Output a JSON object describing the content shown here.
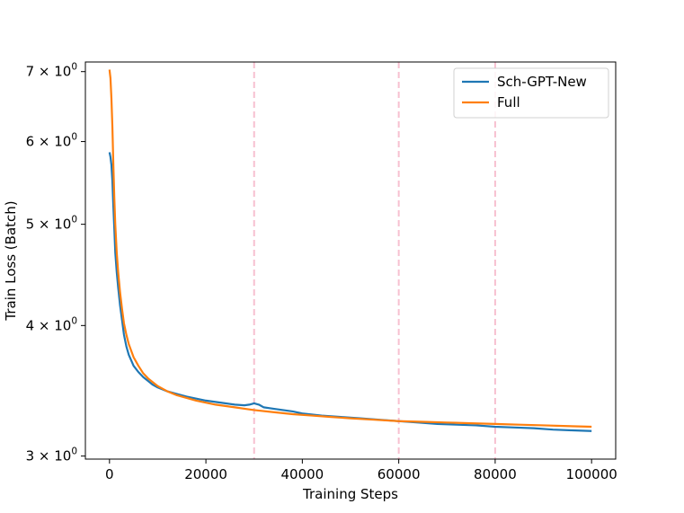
{
  "chart_data": {
    "type": "line",
    "title": "",
    "xlabel": "Training Steps",
    "ylabel": "Train Loss (Batch)",
    "xlim": [
      -5000,
      105000
    ],
    "ylim": [
      2.98,
      7.15
    ],
    "yscale": "log",
    "grid": false,
    "legend_position": "top-right",
    "x_ticks": [
      {
        "value": 0,
        "label": "0"
      },
      {
        "value": 20000,
        "label": "20000"
      },
      {
        "value": 40000,
        "label": "40000"
      },
      {
        "value": 60000,
        "label": "60000"
      },
      {
        "value": 80000,
        "label": "80000"
      },
      {
        "value": 100000,
        "label": "100000"
      }
    ],
    "y_ticks": [
      {
        "value": 3,
        "mantissa": "3",
        "times": "×",
        "base": "10",
        "exp": "0"
      },
      {
        "value": 4,
        "mantissa": "4",
        "times": "×",
        "base": "10",
        "exp": "0"
      },
      {
        "value": 5,
        "mantissa": "5",
        "times": "×",
        "base": "10",
        "exp": "0"
      },
      {
        "value": 6,
        "mantissa": "6",
        "times": "×",
        "base": "10",
        "exp": "0"
      },
      {
        "value": 7,
        "mantissa": "7",
        "times": "×",
        "base": "10",
        "exp": "0"
      }
    ],
    "vlines": [
      {
        "x": 30000,
        "color": "#f7c0d0"
      },
      {
        "x": 60000,
        "color": "#f7c0d0"
      },
      {
        "x": 80000,
        "color": "#f7c0d0"
      }
    ],
    "series": [
      {
        "name": "Sch-GPT-New",
        "color": "#1f77b4",
        "points": [
          [
            0,
            5.86
          ],
          [
            200,
            5.8
          ],
          [
            400,
            5.7
          ],
          [
            600,
            5.5
          ],
          [
            800,
            5.2
          ],
          [
            1000,
            4.95
          ],
          [
            1200,
            4.7
          ],
          [
            1500,
            4.5
          ],
          [
            1800,
            4.35
          ],
          [
            2200,
            4.18
          ],
          [
            2600,
            4.05
          ],
          [
            3000,
            3.92
          ],
          [
            3500,
            3.82
          ],
          [
            4000,
            3.75
          ],
          [
            5000,
            3.66
          ],
          [
            6000,
            3.61
          ],
          [
            7000,
            3.57
          ],
          [
            8000,
            3.54
          ],
          [
            9000,
            3.51
          ],
          [
            10000,
            3.49
          ],
          [
            12000,
            3.46
          ],
          [
            14000,
            3.44
          ],
          [
            16000,
            3.42
          ],
          [
            18000,
            3.405
          ],
          [
            20000,
            3.39
          ],
          [
            22000,
            3.38
          ],
          [
            24000,
            3.37
          ],
          [
            26000,
            3.36
          ],
          [
            28000,
            3.355
          ],
          [
            29000,
            3.36
          ],
          [
            30000,
            3.37
          ],
          [
            31000,
            3.36
          ],
          [
            32000,
            3.34
          ],
          [
            34000,
            3.33
          ],
          [
            36000,
            3.32
          ],
          [
            38000,
            3.31
          ],
          [
            40000,
            3.295
          ],
          [
            44000,
            3.28
          ],
          [
            48000,
            3.27
          ],
          [
            52000,
            3.26
          ],
          [
            56000,
            3.25
          ],
          [
            60000,
            3.24
          ],
          [
            64000,
            3.23
          ],
          [
            68000,
            3.22
          ],
          [
            72000,
            3.215
          ],
          [
            76000,
            3.21
          ],
          [
            80000,
            3.2
          ],
          [
            84000,
            3.195
          ],
          [
            88000,
            3.19
          ],
          [
            92000,
            3.18
          ],
          [
            96000,
            3.175
          ],
          [
            100000,
            3.17
          ]
        ]
      },
      {
        "name": "Full",
        "color": "#ff7f0e",
        "points": [
          [
            0,
            7.03
          ],
          [
            200,
            6.9
          ],
          [
            400,
            6.6
          ],
          [
            600,
            6.2
          ],
          [
            800,
            5.7
          ],
          [
            1000,
            5.3
          ],
          [
            1200,
            5.0
          ],
          [
            1500,
            4.7
          ],
          [
            1800,
            4.5
          ],
          [
            2200,
            4.3
          ],
          [
            2600,
            4.15
          ],
          [
            3000,
            4.02
          ],
          [
            3500,
            3.92
          ],
          [
            4000,
            3.84
          ],
          [
            5000,
            3.73
          ],
          [
            6000,
            3.66
          ],
          [
            7000,
            3.6
          ],
          [
            8000,
            3.56
          ],
          [
            9000,
            3.53
          ],
          [
            10000,
            3.5
          ],
          [
            12000,
            3.46
          ],
          [
            14000,
            3.43
          ],
          [
            16000,
            3.41
          ],
          [
            18000,
            3.39
          ],
          [
            20000,
            3.375
          ],
          [
            22000,
            3.36
          ],
          [
            24000,
            3.35
          ],
          [
            26000,
            3.34
          ],
          [
            28000,
            3.33
          ],
          [
            30000,
            3.32
          ],
          [
            34000,
            3.305
          ],
          [
            38000,
            3.29
          ],
          [
            42000,
            3.28
          ],
          [
            46000,
            3.27
          ],
          [
            50000,
            3.26
          ],
          [
            55000,
            3.25
          ],
          [
            60000,
            3.24
          ],
          [
            65000,
            3.235
          ],
          [
            70000,
            3.23
          ],
          [
            75000,
            3.225
          ],
          [
            80000,
            3.22
          ],
          [
            85000,
            3.215
          ],
          [
            90000,
            3.21
          ],
          [
            95000,
            3.205
          ],
          [
            100000,
            3.2
          ]
        ]
      }
    ]
  }
}
